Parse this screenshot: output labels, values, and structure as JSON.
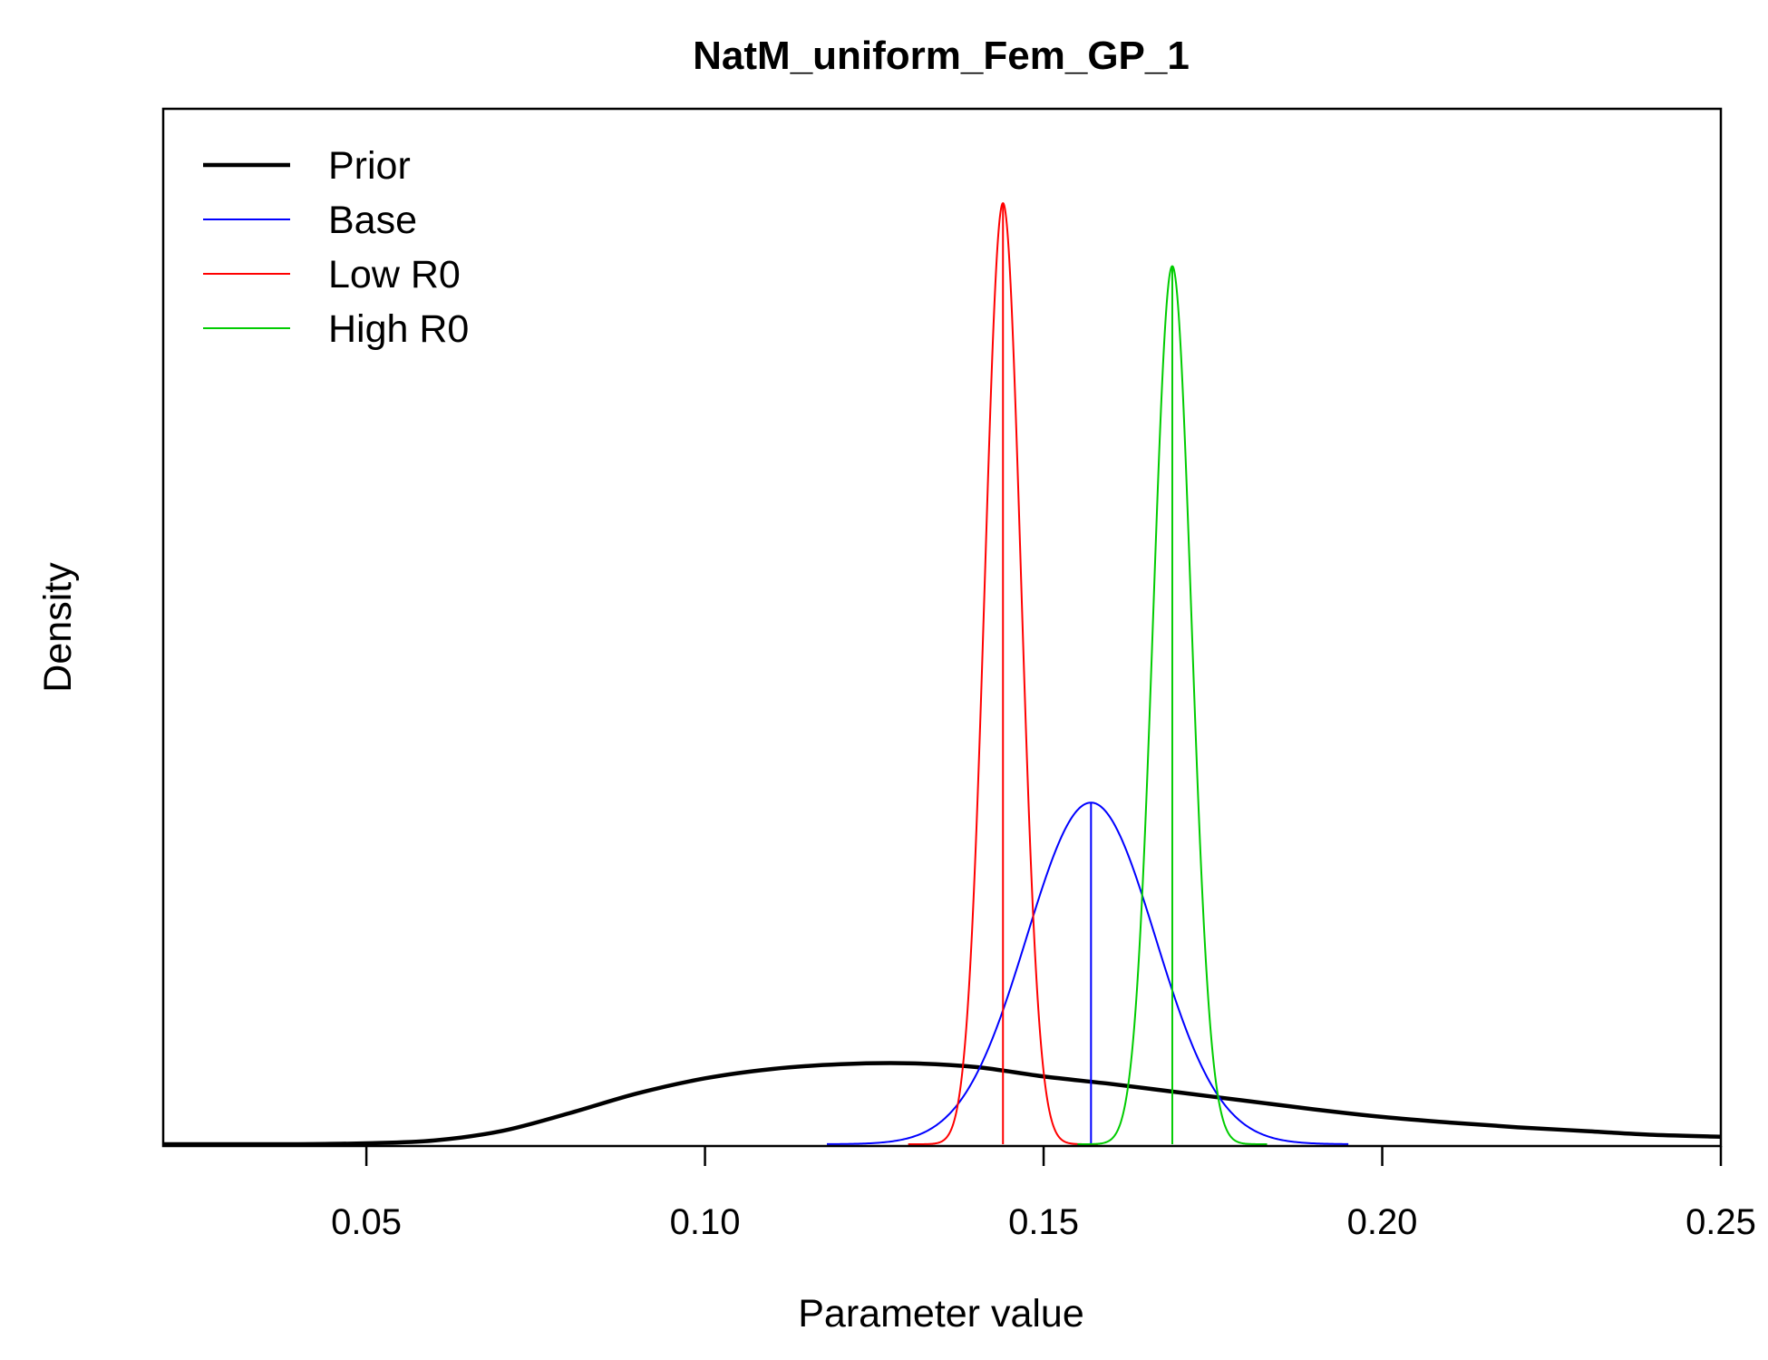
{
  "chart_data": {
    "type": "line",
    "title": "NatM_uniform_Fem_GP_1",
    "xlabel": "Parameter value",
    "ylabel": "Density",
    "xlim": [
      0.02,
      0.25
    ],
    "ylim": [
      0,
      1.0
    ],
    "xticks": [
      0.05,
      0.1,
      0.15,
      0.2,
      0.25
    ],
    "xtick_labels": [
      "0.05",
      "0.10",
      "0.15",
      "0.20",
      "0.25"
    ],
    "y_ticks_shown": false,
    "grid": false,
    "legend": {
      "position": "top-left",
      "entries": [
        "Prior",
        "Base",
        "Low R0",
        "High R0"
      ]
    },
    "series": [
      {
        "name": "Prior",
        "kind": "lognormal-density",
        "color": "#000000",
        "emphasis": "thick",
        "x": [
          0.02,
          0.03,
          0.04,
          0.05,
          0.06,
          0.07,
          0.08,
          0.09,
          0.1,
          0.11,
          0.12,
          0.13,
          0.14,
          0.15,
          0.16,
          0.17,
          0.18,
          0.19,
          0.2,
          0.21,
          0.22,
          0.23,
          0.24,
          0.25
        ],
        "y": [
          0.0,
          0.0,
          0.0,
          0.001,
          0.004,
          0.014,
          0.033,
          0.054,
          0.07,
          0.08,
          0.085,
          0.086,
          0.082,
          0.072,
          0.064,
          0.055,
          0.046,
          0.037,
          0.029,
          0.023,
          0.018,
          0.014,
          0.01,
          0.008
        ]
      },
      {
        "name": "Base",
        "kind": "normal-density",
        "color": "#0000ff",
        "emphasis": "thin",
        "mean": 0.157,
        "sd": 0.0095,
        "range": [
          0.118,
          0.195
        ],
        "peak": 0.363,
        "mean_line": true
      },
      {
        "name": "Low R0",
        "kind": "normal-density",
        "color": "#ff0000",
        "emphasis": "thin",
        "mean": 0.144,
        "sd": 0.00265,
        "range": [
          0.13,
          0.158
        ],
        "peak": 1.0,
        "mean_line": true
      },
      {
        "name": "High R0",
        "kind": "normal-density",
        "color": "#00cc00",
        "emphasis": "thin",
        "mean": 0.169,
        "sd": 0.0028,
        "range": [
          0.155,
          0.183
        ],
        "peak": 0.933,
        "mean_line": true
      }
    ]
  }
}
